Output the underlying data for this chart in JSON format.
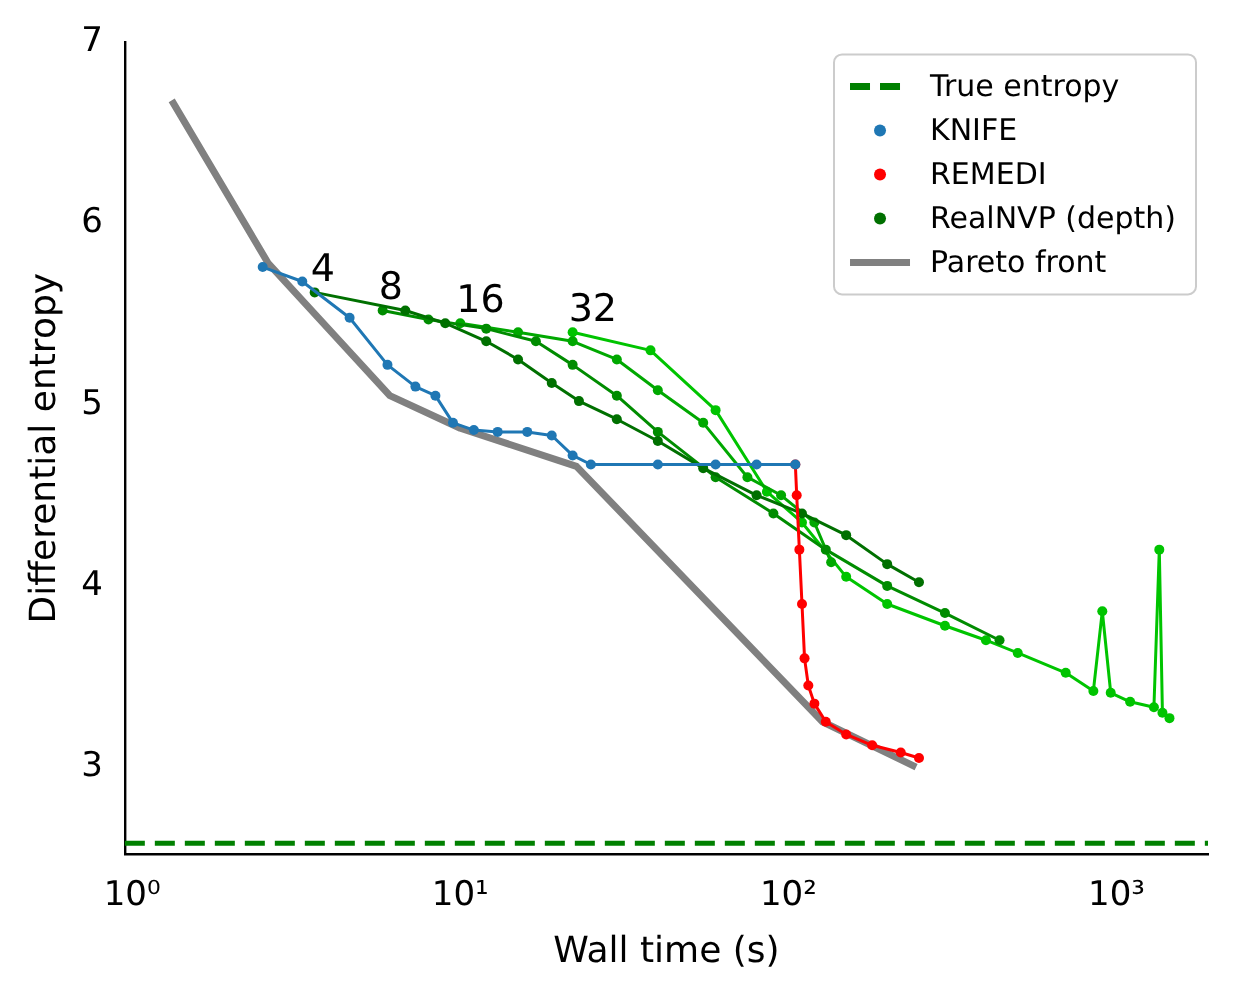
{
  "chart_data": {
    "type": "line",
    "xlabel": "Wall time (s)",
    "ylabel": "Differential entropy",
    "log": "x",
    "xlim": [
      0.95,
      1900
    ],
    "ylim": [
      2.52,
      7
    ],
    "xticks": [
      {
        "value": 1,
        "label": "10⁰"
      },
      {
        "value": 10,
        "label": "10¹"
      },
      {
        "value": 100,
        "label": "10²"
      },
      {
        "value": 1000,
        "label": "10³"
      }
    ],
    "yticks": [
      3,
      4,
      5,
      6,
      7
    ],
    "grid": false,
    "legend": "top right",
    "marker": "circle",
    "line_style": "solid",
    "ref_lines": [
      {
        "axis": "y",
        "value": 2.58,
        "label": "True entropy",
        "color": "#008000",
        "line_style": "dashed"
      }
    ],
    "series": [
      {
        "name": "KNIFE",
        "type": "line",
        "color": "#1f77b4",
        "x": [
          2.5,
          3.3,
          4.6,
          6,
          7.3,
          8.4,
          9.5,
          11,
          13,
          16,
          19,
          22,
          25,
          40,
          60,
          80,
          105
        ],
        "values": [
          5.76,
          5.68,
          5.48,
          5.22,
          5.1,
          5.05,
          4.9,
          4.86,
          4.85,
          4.85,
          4.83,
          4.72,
          4.67,
          4.67,
          4.67,
          4.67,
          4.67
        ]
      },
      {
        "name": "REMEDI",
        "type": "line",
        "color": "#ff0000",
        "x": [
          105,
          106,
          108,
          110,
          112,
          115,
          120,
          130,
          150,
          180,
          220,
          250
        ],
        "values": [
          4.67,
          4.5,
          4.2,
          3.9,
          3.6,
          3.45,
          3.35,
          3.25,
          3.18,
          3.12,
          3.08,
          3.05
        ]
      },
      {
        "name": "RealNVP (depth)",
        "type": "line",
        "color": "#007000",
        "x": [
          3.6,
          6.8,
          9,
          12,
          15,
          19,
          23,
          30,
          40,
          55,
          80,
          110,
          150,
          200,
          250
        ],
        "values": [
          5.62,
          5.52,
          5.45,
          5.35,
          5.25,
          5.12,
          5.02,
          4.92,
          4.8,
          4.65,
          4.5,
          4.4,
          4.28,
          4.12,
          4.02
        ]
      },
      {
        "type": "line",
        "color": "#008c00",
        "x": [
          5.8,
          8,
          12,
          17,
          22,
          30,
          40,
          60,
          90,
          130,
          200,
          300,
          440
        ],
        "values": [
          5.52,
          5.47,
          5.42,
          5.35,
          5.22,
          5.05,
          4.85,
          4.6,
          4.4,
          4.2,
          4.0,
          3.85,
          3.7
        ]
      },
      {
        "type": "line",
        "color": "#00a800",
        "x": [
          10,
          15,
          22,
          30,
          40,
          55,
          75,
          95,
          120,
          135
        ],
        "values": [
          5.45,
          5.4,
          5.35,
          5.25,
          5.08,
          4.9,
          4.6,
          4.5,
          4.35,
          4.13
        ]
      },
      {
        "type": "line",
        "color": "#00c400",
        "x": [
          22,
          38,
          60,
          86,
          110,
          150,
          200,
          300,
          400,
          500,
          700,
          850,
          905,
          960,
          1100,
          1300,
          1350,
          1380,
          1450
        ],
        "values": [
          5.4,
          5.3,
          4.97,
          4.52,
          4.35,
          4.05,
          3.9,
          3.78,
          3.7,
          3.63,
          3.52,
          3.42,
          3.86,
          3.41,
          3.36,
          3.33,
          4.2,
          3.3,
          3.27
        ]
      },
      {
        "name": "Pareto front",
        "type": "line",
        "color": "#808080",
        "marker": "none",
        "x": [
          1.32,
          2.6,
          6.1,
          10,
          22.6,
          127,
          245
        ],
        "values": [
          6.68,
          5.78,
          5.05,
          4.87,
          4.66,
          3.25,
          3.0
        ]
      }
    ],
    "annotations": [
      {
        "text": "4",
        "x": 3.6,
        "y": 5.62
      },
      {
        "text": "8",
        "x": 5.8,
        "y": 5.52
      },
      {
        "text": "16",
        "x": 10,
        "y": 5.45
      },
      {
        "text": "32",
        "x": 22,
        "y": 5.4
      }
    ]
  }
}
